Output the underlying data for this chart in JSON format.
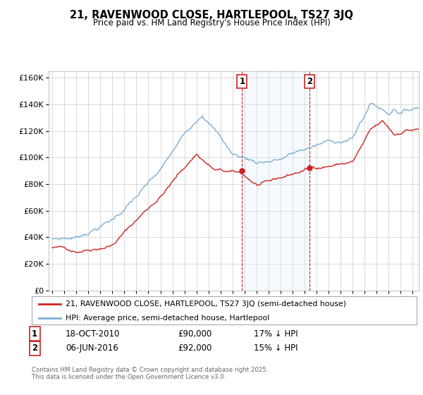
{
  "title": "21, RAVENWOOD CLOSE, HARTLEPOOL, TS27 3JQ",
  "subtitle": "Price paid vs. HM Land Registry's House Price Index (HPI)",
  "legend_line1": "21, RAVENWOOD CLOSE, HARTLEPOOL, TS27 3JQ (semi-detached house)",
  "legend_line2": "HPI: Average price, semi-detached house, Hartlepool",
  "annotation1_date": "18-OCT-2010",
  "annotation1_price": "£90,000",
  "annotation1_hpi": "17% ↓ HPI",
  "annotation1_year": 2010.8,
  "annotation1_value": 90000,
  "annotation2_date": "06-JUN-2016",
  "annotation2_price": "£92,000",
  "annotation2_hpi": "15% ↓ HPI",
  "annotation2_year": 2016.43,
  "annotation2_value": 92000,
  "ylim": [
    0,
    165000
  ],
  "yticks": [
    0,
    20000,
    40000,
    60000,
    80000,
    100000,
    120000,
    140000,
    160000
  ],
  "xlim_start": 1994.7,
  "xlim_end": 2025.5,
  "hpi_color": "#7bafd4",
  "price_color": "#cc2222",
  "shade_color": "#ddeeff",
  "footer": "Contains HM Land Registry data © Crown copyright and database right 2025.\nThis data is licensed under the Open Government Licence v3.0.",
  "background_color": "#ffffff",
  "grid_color": "#cccccc"
}
